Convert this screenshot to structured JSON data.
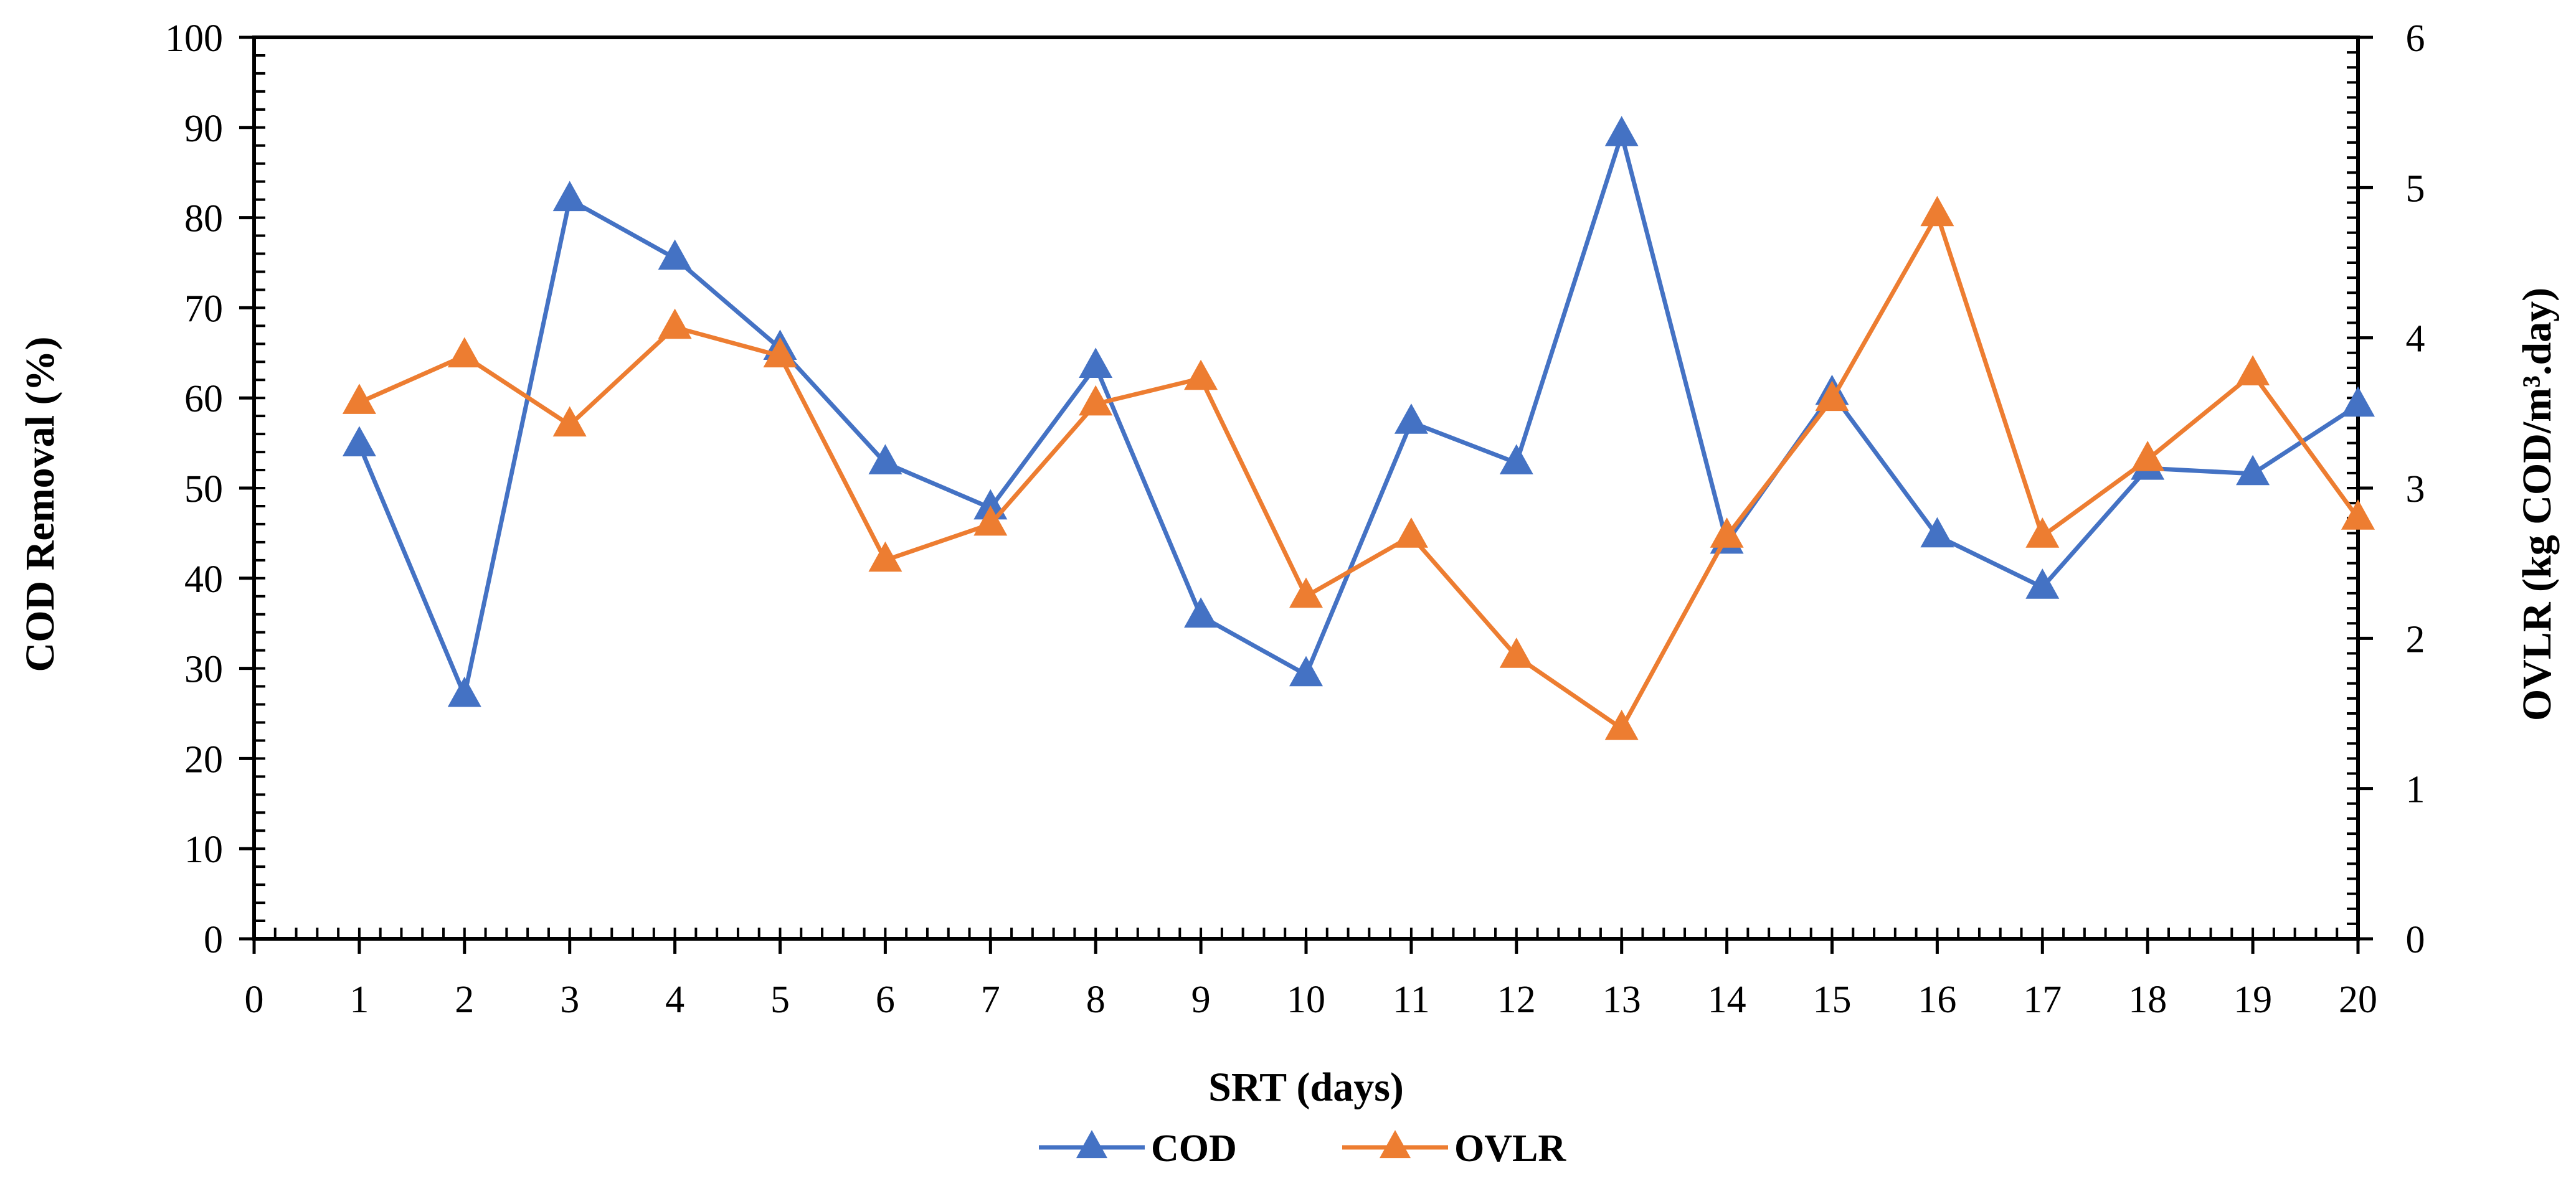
{
  "chart_data": {
    "type": "line",
    "title": "",
    "xlabel": "SRT (days)",
    "ylabel": "COD Removal (%)",
    "y2label": "OVLR (kg COD/m³.day)",
    "xlim": [
      0,
      20
    ],
    "ylim": [
      0,
      100
    ],
    "y2lim": [
      0,
      6
    ],
    "grid": false,
    "legend_position": "bottom-center",
    "x_ticks": [
      "0",
      "1",
      "2",
      "3",
      "4",
      "5",
      "6",
      "7",
      "8",
      "9",
      "10",
      "11",
      "12",
      "13",
      "14",
      "15",
      "16",
      "17",
      "18",
      "19",
      "20"
    ],
    "y_ticks": [
      "0",
      "10",
      "20",
      "30",
      "40",
      "50",
      "60",
      "70",
      "80",
      "90",
      "100"
    ],
    "y2_ticks": [
      "0",
      "1",
      "2",
      "3",
      "4",
      "5",
      "6"
    ],
    "x": [
      1,
      2,
      3,
      4,
      5,
      6,
      7,
      8,
      9,
      10,
      11,
      12,
      13,
      14,
      15,
      16,
      17,
      18,
      19,
      20
    ],
    "series": [
      {
        "name": "COD",
        "axis": "left",
        "color": "#4472C4",
        "marker": "triangle",
        "values": [
          54.8,
          27.0,
          82.0,
          75.5,
          65.5,
          52.8,
          47.8,
          63.5,
          35.8,
          29.3,
          57.3,
          52.8,
          89.2,
          44.0,
          60.5,
          44.7,
          39.0,
          52.2,
          51.6,
          59.2
        ]
      },
      {
        "name": "OVLR",
        "axis": "right",
        "color": "#ED7D31",
        "marker": "triangle",
        "values": [
          3.57,
          3.88,
          3.42,
          4.07,
          3.88,
          2.52,
          2.76,
          3.56,
          3.73,
          2.28,
          2.68,
          1.88,
          1.4,
          2.68,
          3.59,
          4.82,
          2.68,
          3.19,
          3.76,
          2.8
        ]
      }
    ]
  }
}
